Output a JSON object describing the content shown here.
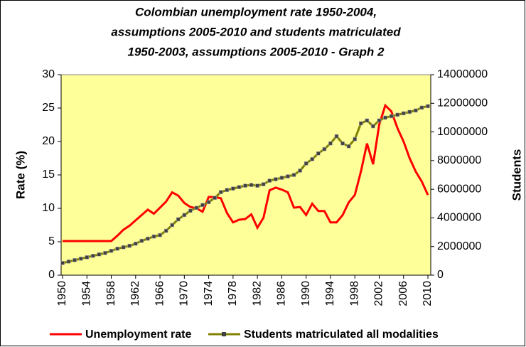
{
  "chart_data": {
    "type": "line",
    "title": [
      "Colombian unemployment rate 1950-2004,",
      "assumptions 2005-2010 and students matriculated",
      "1950-2003, assumptions 2005-2010 - Graph 2"
    ],
    "ylabel": "Rate (%)",
    "y2label": "Students",
    "x": [
      1950,
      1951,
      1952,
      1953,
      1954,
      1955,
      1956,
      1957,
      1958,
      1959,
      1960,
      1961,
      1962,
      1963,
      1964,
      1965,
      1966,
      1967,
      1968,
      1969,
      1970,
      1971,
      1972,
      1973,
      1974,
      1975,
      1976,
      1977,
      1978,
      1979,
      1980,
      1981,
      1982,
      1983,
      1984,
      1985,
      1986,
      1987,
      1988,
      1989,
      1990,
      1991,
      1992,
      1993,
      1994,
      1995,
      1996,
      1997,
      1998,
      1999,
      2000,
      2001,
      2002,
      2003,
      2004,
      2005,
      2006,
      2007,
      2008,
      2009,
      2010
    ],
    "xlim": [
      1950,
      2010
    ],
    "xticks": [
      1950,
      1954,
      1958,
      1962,
      1966,
      1970,
      1974,
      1978,
      1982,
      1986,
      1990,
      1994,
      1998,
      2002,
      2006,
      2010
    ],
    "ylim": [
      0,
      30
    ],
    "yticks": [
      0,
      5,
      10,
      15,
      20,
      25,
      30
    ],
    "y2lim": [
      0,
      14000000
    ],
    "y2ticks": [
      0,
      2000000,
      4000000,
      6000000,
      8000000,
      10000000,
      12000000,
      14000000
    ],
    "background": "#ffff99",
    "series": [
      {
        "name": "Unemployment rate",
        "color": "#ff0000",
        "values": [
          5.1,
          5.1,
          5.1,
          5.1,
          5.1,
          5.1,
          5.1,
          5.1,
          5.1,
          5.9,
          6.8,
          7.4,
          8.2,
          9.0,
          9.8,
          9.2,
          10.1,
          11.0,
          12.4,
          11.9,
          10.8,
          10.2,
          10.0,
          9.5,
          11.7,
          11.7,
          11.5,
          9.3,
          7.9,
          8.3,
          8.4,
          9.1,
          7.1,
          8.6,
          12.7,
          13.1,
          12.8,
          12.4,
          10.1,
          10.2,
          9.0,
          10.7,
          9.6,
          9.6,
          7.9,
          7.9,
          9.0,
          10.9,
          12.0,
          15.5,
          19.7,
          16.6,
          22.5,
          25.4,
          24.5,
          22.0,
          20.0,
          17.5,
          15.5,
          14.0,
          12.0
        ]
      },
      {
        "name": "Students matriculated all modalities",
        "color": "#808000",
        "marker_color": "#404040",
        "axis": "y2",
        "values": [
          850000,
          950000,
          1050000,
          1150000,
          1250000,
          1350000,
          1450000,
          1550000,
          1700000,
          1850000,
          1950000,
          2050000,
          2200000,
          2400000,
          2550000,
          2700000,
          2800000,
          3100000,
          3500000,
          3900000,
          4200000,
          4500000,
          4700000,
          4900000,
          5100000,
          5400000,
          5800000,
          5950000,
          6050000,
          6150000,
          6250000,
          6300000,
          6250000,
          6350000,
          6600000,
          6700000,
          6800000,
          6900000,
          7000000,
          7300000,
          7800000,
          8100000,
          8500000,
          8800000,
          9200000,
          9700000,
          9200000,
          9000000,
          9500000,
          10600000,
          10800000,
          10400000,
          10800000,
          11000000,
          11100000,
          11200000,
          11300000,
          11400000,
          11500000,
          11700000,
          11800000
        ]
      }
    ]
  }
}
